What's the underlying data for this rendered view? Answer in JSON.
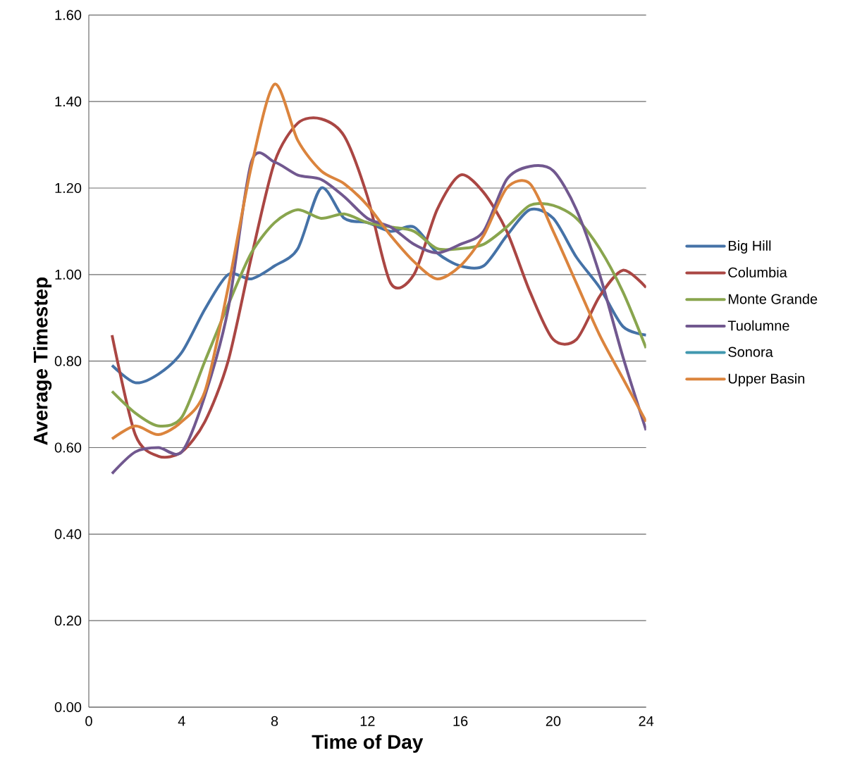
{
  "chart_data": {
    "type": "line",
    "xlabel": "Time of Day",
    "ylabel": "Average  Timestep",
    "x": [
      1,
      2,
      3,
      4,
      5,
      6,
      7,
      8,
      9,
      10,
      11,
      12,
      13,
      14,
      15,
      16,
      17,
      18,
      19,
      20,
      21,
      22,
      23,
      24
    ],
    "xlim": [
      0,
      24
    ],
    "xticks": [
      0,
      4,
      8,
      12,
      16,
      20,
      24
    ],
    "ylim": [
      0,
      1.6
    ],
    "yticks": [
      {
        "value": 0,
        "label": "0.00"
      },
      {
        "value": 0.2,
        "label": "0.20"
      },
      {
        "value": 0.4,
        "label": "0.40"
      },
      {
        "value": 0.6,
        "label": "0.60"
      },
      {
        "value": 0.8,
        "label": "0.80"
      },
      {
        "value": 1.0,
        "label": "1.00"
      },
      {
        "value": 1.2,
        "label": "1.20"
      },
      {
        "value": 1.4,
        "label": "1.40"
      },
      {
        "value": 1.6,
        "label": "1.60"
      }
    ],
    "grid": "y",
    "legend": "right",
    "marker": "none",
    "line_style": "solid",
    "series": [
      {
        "name": "Big Hill",
        "color": "#4572a7",
        "values": [
          0.79,
          0.75,
          0.77,
          0.82,
          0.92,
          1.0,
          0.99,
          1.02,
          1.06,
          1.2,
          1.13,
          1.12,
          1.1,
          1.11,
          1.05,
          1.02,
          1.02,
          1.09,
          1.15,
          1.13,
          1.04,
          0.97,
          0.88,
          0.86
        ]
      },
      {
        "name": "Columbia",
        "color": "#aa4643",
        "values": [
          0.86,
          0.63,
          0.58,
          0.59,
          0.66,
          0.8,
          1.04,
          1.26,
          1.35,
          1.36,
          1.32,
          1.18,
          0.98,
          1.0,
          1.15,
          1.23,
          1.19,
          1.1,
          0.96,
          0.85,
          0.85,
          0.95,
          1.01,
          0.97
        ]
      },
      {
        "name": "Monte Grande",
        "color": "#89a54e",
        "values": [
          0.73,
          0.68,
          0.65,
          0.67,
          0.8,
          0.93,
          1.05,
          1.12,
          1.15,
          1.13,
          1.14,
          1.12,
          1.11,
          1.1,
          1.06,
          1.06,
          1.07,
          1.11,
          1.16,
          1.16,
          1.13,
          1.06,
          0.96,
          0.83
        ]
      },
      {
        "name": "Tuolumne",
        "color": "#71588f",
        "values": [
          0.54,
          0.59,
          0.6,
          0.59,
          0.72,
          0.92,
          1.26,
          1.26,
          1.23,
          1.22,
          1.18,
          1.13,
          1.11,
          1.07,
          1.05,
          1.07,
          1.1,
          1.22,
          1.25,
          1.24,
          1.15,
          1.0,
          0.81,
          0.64
        ]
      },
      {
        "name": "Sonora",
        "color": "#4198af",
        "values": [
          null,
          null,
          null,
          null,
          null,
          null,
          null,
          null,
          null,
          null,
          null,
          null,
          null,
          null,
          null,
          null,
          null,
          null,
          null,
          null,
          null,
          null,
          null,
          null
        ]
      },
      {
        "name": "Upper Basin",
        "color": "#db843d",
        "values": [
          0.62,
          0.65,
          0.63,
          0.66,
          0.73,
          0.97,
          1.25,
          1.44,
          1.31,
          1.24,
          1.21,
          1.16,
          1.09,
          1.03,
          0.99,
          1.02,
          1.09,
          1.2,
          1.21,
          1.1,
          0.98,
          0.86,
          0.76,
          0.66
        ]
      }
    ]
  }
}
